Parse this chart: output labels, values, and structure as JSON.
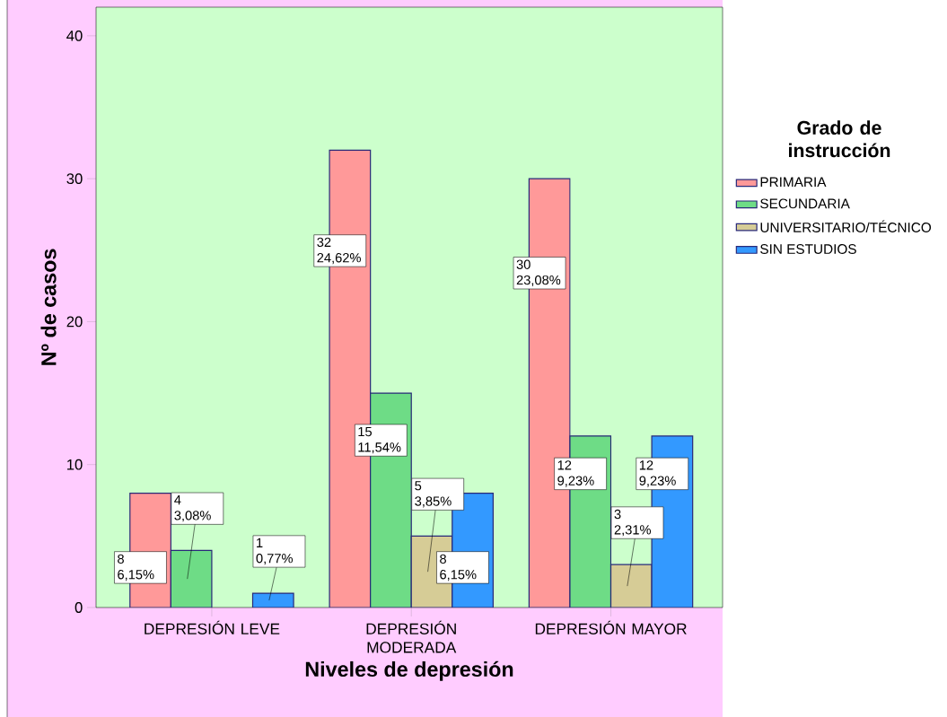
{
  "chart_data": {
    "type": "bar",
    "xlabel": "Niveles de depresión",
    "ylabel": "Nº de casos",
    "legend_title": "Grado de instrucción",
    "categories": [
      "DEPRESIÓN LEVE",
      "DEPRESIÓN MODERADA",
      "DEPRESIÓN MAYOR"
    ],
    "series": [
      {
        "name": "PRIMARIA",
        "color": "#ff9999",
        "values": [
          8,
          32,
          30
        ],
        "value_labels": [
          "8 6,15%",
          "32 24,62%",
          "30 23,08%"
        ]
      },
      {
        "name": "SECUNDARIA",
        "color": "#6edc86",
        "values": [
          4,
          15,
          12
        ],
        "value_labels": [
          "4 3,08%",
          "15 11,54%",
          "12 9,23%"
        ]
      },
      {
        "name": "UNIVERSITARIO/TÉCNICO",
        "color": "#d6cc96",
        "values": [
          null,
          5,
          3
        ],
        "value_labels": [
          null,
          "5 3,85%",
          "3 2,31%"
        ]
      },
      {
        "name": "SIN ESTUDIOS",
        "color": "#3399ff",
        "values": [
          1,
          8,
          12
        ],
        "value_labels": [
          "1 0,77%",
          "8 6,15%",
          "12 9,23%"
        ]
      }
    ],
    "ylim": [
      0,
      42
    ],
    "yticks": [
      0,
      10,
      20,
      30,
      40
    ],
    "grid": false,
    "legend": "right"
  }
}
